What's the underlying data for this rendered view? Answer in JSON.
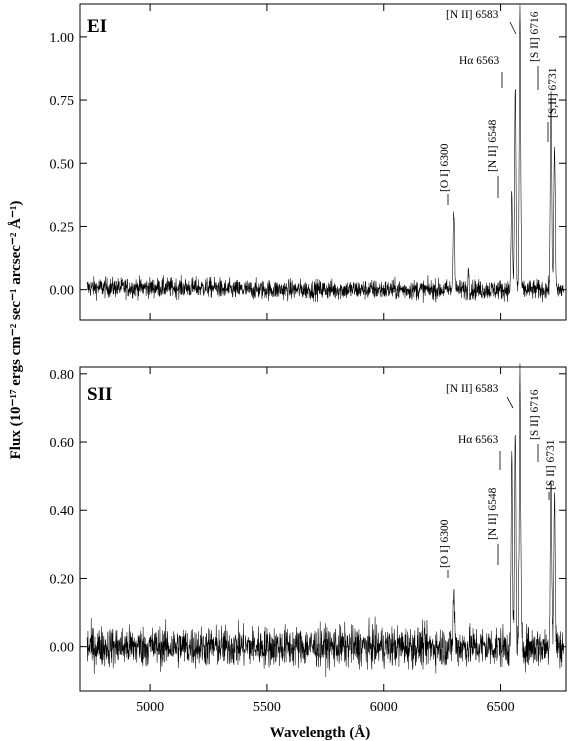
{
  "chart_data": [
    {
      "type": "line",
      "panel_title": "EI",
      "xlim": [
        4700,
        6780
      ],
      "ylim": [
        -0.12,
        1.13
      ],
      "yticks": [
        0.0,
        0.25,
        0.5,
        0.75,
        1.0
      ],
      "ytick_labels": [
        "0.00",
        "0.25",
        "0.50",
        "0.75",
        "1.00"
      ],
      "xticks": [
        5000,
        5500,
        6000,
        6500
      ],
      "noise": 0.02,
      "lines": [
        {
          "label": "[O I] 6300",
          "wavelength": 6300,
          "peak": 0.33
        },
        {
          "label": "[N II] 6548",
          "wavelength": 6548,
          "peak": 0.37
        },
        {
          "label": "Hα 6563",
          "wavelength": 6563,
          "peak": 0.81
        },
        {
          "label": "[N II] 6583",
          "wavelength": 6583,
          "peak": 1.11
        },
        {
          "label": "[S II] 6716",
          "wavelength": 6716,
          "peak": 0.79
        },
        {
          "label": "[S,II] 6731",
          "wavelength": 6731,
          "peak": 0.56
        }
      ]
    },
    {
      "type": "line",
      "panel_title": "SII",
      "xlim": [
        4700,
        6780
      ],
      "ylim": [
        -0.13,
        0.82
      ],
      "yticks": [
        0.0,
        0.2,
        0.4,
        0.6,
        0.8
      ],
      "ytick_labels": [
        "0.00",
        "0.20",
        "0.40",
        "0.60",
        "0.80"
      ],
      "xticks": [
        5000,
        5500,
        6000,
        6500
      ],
      "xtick_labels": [
        "5000",
        "5500",
        "6000",
        "6500"
      ],
      "noise": 0.03,
      "lines": [
        {
          "label": "[O I] 6300",
          "wavelength": 6300,
          "peak": 0.16
        },
        {
          "label": "[N II] 6548",
          "wavelength": 6548,
          "peak": 0.53
        },
        {
          "label": "Hα 6563",
          "wavelength": 6563,
          "peak": 0.62
        },
        {
          "label": "[N II] 6583",
          "wavelength": 6583,
          "peak": 0.78
        },
        {
          "label": "[S II] 6716",
          "wavelength": 6716,
          "peak": 0.52
        },
        {
          "label": "[S II] 6731",
          "wavelength": 6731,
          "peak": 0.43
        }
      ]
    }
  ],
  "xlabel": "Wavelength (Å)",
  "ylabel": "Flux (10⁻¹⁷ ergs cm⁻² sec⁻¹ arcsec⁻² Å⁻¹)"
}
